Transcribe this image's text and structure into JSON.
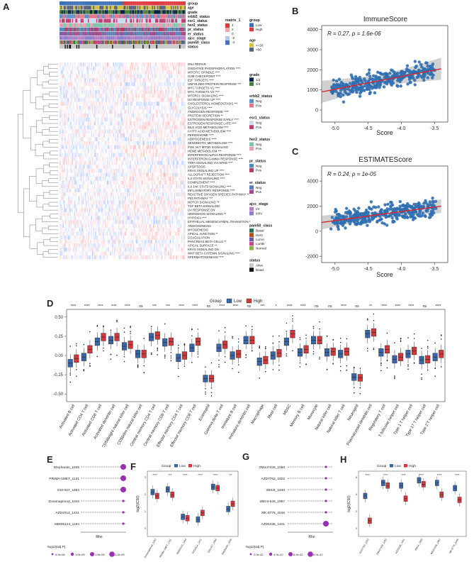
{
  "panels": {
    "A": {
      "label": "A",
      "annotation_tracks": [
        "group",
        "age",
        "grade",
        "erbb2_status",
        "esr1_status",
        "her2_status",
        "pr_status",
        "er_status",
        "ajcc_stage",
        "pam50_class",
        "status"
      ],
      "rows": [
        "DNA REPAIR",
        "OXIDATIVE PHOSPHORYLATION ****",
        "MITOTIC SPINDLE ****",
        "G2M CHECKPOINT ****",
        "E2F TARGETS ****",
        "UNFOLDED PROTEIN RESPONSE ***",
        "MYC TARGETS V1 ****",
        "MYC TARGETS V2 ****",
        "MTORC1 SIGNALING ****",
        "UV RESPONSE UP ****",
        "CHOLESTEROL HOMEOSTASIS ***",
        "GLYCOLYSIS ****",
        "ANDROGEN RESPONSE ****",
        "PROTEIN SECRETION **",
        "ESTROGEN RESPONSE EARLY ****",
        "ESTROGEN RESPONSE LATE ****",
        "BILE ACID METABOLISM ****",
        "FATTY ACID METABOLISM ****",
        "PEROXISOME ****",
        "ADIPOGENESIS ****",
        "XENOBIOTIC METABOLISM ****",
        "PI3K AKT MTOR SIGNALING",
        "HEME METABOLISM ***",
        "INTERFERON ALPHA RESPONSE ****",
        "INTERFERON GAMMA RESPONSE ****",
        "TNFA SIGNALING VIA NFKB ****",
        "APOPTOSIS",
        "KRAS SIGNALING UP ****",
        "ALLOGRAFT REJECTION ****",
        "IL2 STAT5 SIGNALING ****",
        "COMPLEMENT ****",
        "IL6 JAK STAT3 SIGNALING ****",
        "INFLAMMATORY RESPONSE ****",
        "REACTIVE OXYGEN SPECIES PATHWAY **",
        "P53 PATHWAY ***",
        "NOTCH SIGNALING **",
        "TGF BETA SIGNALING",
        "UV RESPONSE DN",
        "HEDGEHOG SIGNALING **",
        "HYPOXIA ****",
        "EPITHELIAL MESENCHYMAL TRANSITION *",
        "ANGIOGENESIS",
        "MYOGENESIS",
        "APICAL JUNCTION **",
        "COAGULATION",
        "PANCREAS BETA CELLS **",
        "APICAL SURFACE **",
        "KRAS SIGNALING DN",
        "WNT BETA CATENIN SIGNALING ****",
        "SPERMATOGENESIS ****"
      ],
      "legend": {
        "matrix": {
          "title": "matrix_1",
          "ticks": [
            "4",
            "2",
            "0",
            "-2",
            "-4"
          ]
        },
        "group": {
          "title": "group",
          "items": [
            {
              "label": "Low",
              "color": "#3c6fb4"
            },
            {
              "label": "High",
              "color": "#e0383f"
            }
          ]
        },
        "age": {
          "title": "age",
          "items": [
            {
              "label": "<=50",
              "color": "#d4c23d"
            },
            {
              "label": ">50",
              "color": "#55627a"
            }
          ]
        },
        "grade": {
          "title": "grade",
          "items": [
            {
              "label": "1/2",
              "color": "#0a1f4a"
            },
            {
              "label": "3/4",
              "color": "#4b7d3c"
            }
          ]
        },
        "erbb2_status": {
          "title": "erbb2_status",
          "items": [
            {
              "label": "Neg",
              "color": "#5a8fc8"
            },
            {
              "label": "Pos",
              "color": "#e4768c"
            }
          ]
        },
        "esr1_status": {
          "title": "esr1_status",
          "items": [
            {
              "label": "Neg",
              "color": "#c9dbf0"
            },
            {
              "label": "Pos",
              "color": "#c23b6e"
            }
          ]
        },
        "her2_status": {
          "title": "her2_status",
          "items": [
            {
              "label": "Neg",
              "color": "#7bc5a8"
            },
            {
              "label": "Pos",
              "color": "#e8a0b4"
            }
          ]
        },
        "pr_status": {
          "title": "pr_status",
          "items": [
            {
              "label": "Neg",
              "color": "#4c8eb8"
            },
            {
              "label": "Pos",
              "color": "#b53a6a"
            }
          ]
        },
        "er_status": {
          "title": "er_status",
          "items": [
            {
              "label": "Neg",
              "color": "#5b7fb5"
            },
            {
              "label": "Pos",
              "color": "#a44a8c"
            }
          ]
        },
        "ajcc_stage": {
          "title": "ajcc_stage",
          "items": [
            {
              "label": "I/II",
              "color": "#b87fc4"
            },
            {
              "label": "III/IV",
              "color": "#8a7fc8"
            }
          ]
        },
        "pam50_class": {
          "title": "pam50_class",
          "items": [
            {
              "label": "Basal",
              "color": "#2a6f54"
            },
            {
              "label": "Her2",
              "color": "#b44a1e"
            },
            {
              "label": "LumA",
              "color": "#6a5aa8"
            },
            {
              "label": "LumB",
              "color": "#c24a8c"
            },
            {
              "label": "Normal",
              "color": "#8ab04a"
            }
          ]
        },
        "status": {
          "title": "status",
          "items": [
            {
              "label": "Alive",
              "color": "#c8c8c8"
            },
            {
              "label": "Dead",
              "color": "#111111"
            }
          ]
        }
      }
    },
    "B": {
      "label": "B",
      "chart_data": {
        "type": "scatter",
        "title": "ImmuneScore",
        "xlabel": "Score",
        "ylabel": "",
        "annotation": "R = 0.27, p = 1.6e-06",
        "xlim": [
          -5.2,
          -3.3
        ],
        "ylim": [
          -600,
          4200
        ],
        "xticks": [
          "-5.0",
          "-4.5",
          "-4.0",
          "-3.5"
        ],
        "yticks": [
          "0",
          "1000",
          "2000",
          "3000",
          "4000"
        ],
        "fit": {
          "x": [
            -5.2,
            -3.4
          ],
          "y": [
            900,
            2050
          ]
        }
      }
    },
    "C": {
      "label": "C",
      "chart_data": {
        "type": "scatter",
        "title": "ESTIMATEScore",
        "xlabel": "Score",
        "ylabel": "",
        "annotation": "R = 0.24, p = 1e-05",
        "xlim": [
          -5.2,
          -3.3
        ],
        "ylim": [
          -2500,
          5200
        ],
        "xticks": [
          "-5.0",
          "-4.5",
          "-4.0",
          "-3.5"
        ],
        "yticks": [
          "-2000",
          "0",
          "2000",
          "4000"
        ],
        "fit": {
          "x": [
            -5.2,
            -3.4
          ],
          "y": [
            700,
            2000
          ]
        }
      }
    },
    "D": {
      "label": "D",
      "legend": {
        "title": "Group",
        "items": [
          {
            "label": "Low",
            "color": "#3a66a8"
          },
          {
            "label": "High",
            "color": "#d2373c"
          }
        ]
      },
      "chart_data": {
        "type": "box",
        "ylim": [
          -0.6,
          0.6
        ],
        "yticks": [
          "0.50",
          "0.25",
          "0.00",
          "-0.25",
          "-0.50"
        ],
        "categories": [
          "Activated B cell",
          "Activated CD4 T cell",
          "Activated CD8 T cell",
          "Activated dendritic cell",
          "CD56bright natural killer cell",
          "CD56dim natural killer cell",
          "Central memory CD4 T cell",
          "Central memory CD8 T cell",
          "Effector memory CD4 T cell",
          "Effector memory CD8 T cell",
          "Eosinophil",
          "Gamma delta T cell",
          "Immature  B cell",
          "Immature dendritic cell",
          "Macrophage",
          "Mast cell",
          "MDSC",
          "Memory B cell",
          "Monocyte",
          "Natural killer cell",
          "Natural killer T cell",
          "Neutrophil",
          "Plasmacytoid dendritic cell",
          "Regulatory T cell",
          "T follicular helper cell",
          "Type 1 T helper cell",
          "Type 17 T helper cell",
          "Type 2 T helper cell"
        ],
        "significance": [
          "****",
          "****",
          "****",
          "****",
          "****",
          "ns",
          "***",
          "***",
          "****",
          "****",
          "ns",
          "****",
          "****",
          "ns",
          "***",
          "*",
          "****",
          "****",
          "ns",
          "ns",
          "****",
          "ns",
          "**",
          "****",
          "****",
          "****",
          "ns",
          "****"
        ],
        "low_median": [
          -0.1,
          -0.02,
          0.18,
          0.2,
          0.12,
          0.02,
          0.24,
          0.17,
          -0.03,
          0.1,
          -0.3,
          0.1,
          0.0,
          0.2,
          -0.08,
          0.0,
          0.18,
          0.04,
          0.2,
          0.04,
          0.02,
          -0.28,
          0.28,
          0.04,
          -0.05,
          0.02,
          -0.06,
          -0.02
        ],
        "high_median": [
          -0.04,
          0.08,
          0.24,
          0.24,
          0.14,
          0.02,
          0.26,
          0.18,
          0.0,
          0.18,
          -0.3,
          0.14,
          0.02,
          0.2,
          -0.06,
          0.03,
          0.28,
          0.08,
          0.2,
          0.05,
          0.05,
          -0.29,
          0.3,
          0.08,
          -0.02,
          0.06,
          -0.05,
          0.02
        ]
      }
    },
    "E": {
      "label": "E",
      "chart_data": {
        "type": "dot",
        "drugs": [
          "Elephantin_1835",
          "PRIMA-1MET_1131",
          "OSI-027_1594",
          "Doramapimod_1042",
          "AZD2014_1441",
          "SB505124_1194"
        ],
        "rho": [
          0.26,
          0.24,
          0.24,
          0.22,
          0.2,
          0.18
        ],
        "xlabel": "Rho",
        "legend_title": "-log10(adj.P)",
        "legend_items": [
          "5.0e-06",
          "1.0e-05",
          "1.5e-05",
          "2.0e-05"
        ]
      }
    },
    "F": {
      "label": "F",
      "legend": {
        "title": "Group",
        "items": [
          {
            "label": "Low",
            "color": "#3a66a8"
          },
          {
            "label": "High",
            "color": "#d2373c"
          }
        ]
      },
      "chart_data": {
        "type": "box",
        "ylabel": "log2(IC50)",
        "categories": [
          "Doramapimod_1042",
          "PRIMA-1MET_1131",
          "SB505124_1194",
          "AZD2014_1441",
          "OSI-027_1594",
          "Elephantin_1835"
        ],
        "significance": [
          "****",
          "***",
          "****",
          "****",
          "****",
          "**"
        ],
        "yticks": [
          "3",
          "2",
          "1",
          "0"
        ]
      }
    },
    "G": {
      "label": "G",
      "chart_data": {
        "type": "dot",
        "drugs": [
          "ZM447439_1050",
          "AZD7762_1022",
          "WIKI4_1940",
          "WEHI-539_1997",
          "MK-8776_2046",
          "AZD5438_1401"
        ],
        "rho": [
          -0.26,
          -0.25,
          -0.24,
          -0.23,
          -0.22,
          -0.24
        ],
        "xlabel": "Rho",
        "legend_title": "-log10(adj.P)",
        "legend_items": [
          "2.0e-42",
          "4.0e-42",
          "6.0e-42",
          "8.0e-42"
        ]
      }
    },
    "H": {
      "label": "H",
      "legend": {
        "title": "Group",
        "items": [
          {
            "label": "Low",
            "color": "#3a66a8"
          },
          {
            "label": "High",
            "color": "#d2373c"
          }
        ]
      },
      "chart_data": {
        "type": "box",
        "ylabel": "log2(IC50)",
        "categories": [
          "AZD7762_1022",
          "ZM447439_1050",
          "AZD5438_1401",
          "WIKI4_1940",
          "WEHI-539_1997",
          "MK-8776_2046"
        ],
        "significance": [
          "****",
          "****",
          "****",
          "****",
          "****",
          "****"
        ],
        "yticks": [
          "6",
          "4",
          "2",
          "0"
        ]
      }
    }
  }
}
